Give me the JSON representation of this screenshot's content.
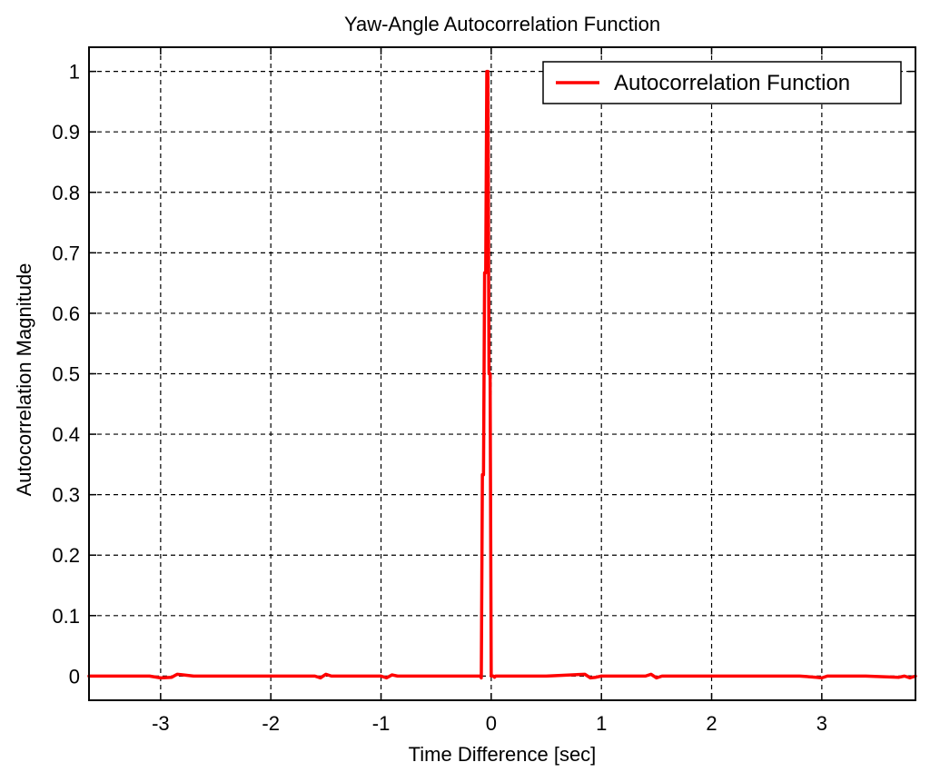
{
  "chart_data": {
    "type": "line",
    "title": "Yaw-Angle Autocorrelation Function",
    "xlabel": "Time Difference [sec]",
    "ylabel": "Autocorrelation Magnitude",
    "xlim": [
      -3.65,
      3.85
    ],
    "ylim": [
      -0.04,
      1.04
    ],
    "xticks": [
      -3,
      -2,
      -1,
      0,
      1,
      2,
      3
    ],
    "xtick_labels": [
      "-3",
      "-2",
      "-1",
      "0",
      "1",
      "2",
      "3"
    ],
    "yticks": [
      0,
      0.1,
      0.2,
      0.3,
      0.4,
      0.5,
      0.6,
      0.7,
      0.8,
      0.9,
      1
    ],
    "ytick_labels": [
      "0",
      "0.1",
      "0.2",
      "0.3",
      "0.4",
      "0.5",
      "0.6",
      "0.7",
      "0.8",
      "0.9",
      "1"
    ],
    "grid": true,
    "legend": {
      "location": "top-right",
      "entries": [
        "Autocorrelation Function"
      ]
    },
    "series": [
      {
        "name": "Autocorrelation Function",
        "color": "#ff0000",
        "x": [
          -3.65,
          -3.3,
          -3.1,
          -3.0,
          -2.9,
          -2.85,
          -2.8,
          -2.7,
          -2.3,
          -2.0,
          -1.6,
          -1.55,
          -1.5,
          -1.45,
          -1.0,
          -0.95,
          -0.9,
          -0.85,
          -0.5,
          -0.1,
          -0.09,
          -0.08,
          -0.07,
          -0.06,
          -0.05,
          -0.04,
          -0.03,
          -0.02,
          -0.01,
          0.0,
          0.01,
          0.02,
          0.03,
          0.04,
          0.05,
          0.06,
          0.5,
          0.85,
          0.9,
          0.95,
          1.0,
          1.4,
          1.45,
          1.5,
          1.55,
          2.0,
          2.5,
          2.8,
          2.95,
          3.0,
          3.05,
          3.4,
          3.7,
          3.75,
          3.8,
          3.85
        ],
        "y": [
          0.0,
          0.0,
          0.0,
          -0.003,
          -0.002,
          0.003,
          0.002,
          0.0,
          0.0,
          0.0,
          0.0,
          -0.003,
          0.003,
          0.0,
          0.0,
          -0.003,
          0.002,
          0.0,
          0.0,
          0.0,
          -0.003,
          0.333,
          0.333,
          0.667,
          0.667,
          1.0,
          1.0,
          0.5,
          0.5,
          0.0,
          0.0,
          0.0,
          -0.002,
          0.0,
          0.0,
          0.0,
          0.0,
          0.003,
          -0.003,
          -0.002,
          0.0,
          0.0,
          0.003,
          -0.003,
          0.0,
          0.0,
          0.0,
          0.0,
          -0.002,
          -0.003,
          0.0,
          0.0,
          -0.002,
          0.0,
          -0.003,
          0.0
        ]
      }
    ]
  }
}
